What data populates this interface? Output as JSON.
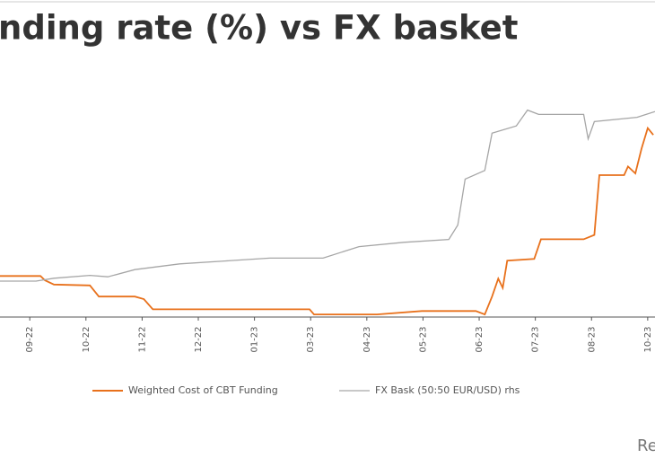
{
  "chart_data": {
    "type": "line",
    "title": "nding rate (%) vs FX basket",
    "source_note": "Re",
    "xlim": [
      -0.53,
      11.13
    ],
    "xticks": [
      {
        "value": 0,
        "label": "09-22"
      },
      {
        "value": 1,
        "label": "10-22"
      },
      {
        "value": 2,
        "label": "11-22"
      },
      {
        "value": 3,
        "label": "12-22"
      },
      {
        "value": 4,
        "label": "01-23"
      },
      {
        "value": 5,
        "label": "03-23"
      },
      {
        "value": 6,
        "label": "04-23"
      },
      {
        "value": 7,
        "label": "05-23"
      },
      {
        "value": 8,
        "label": "06-23"
      },
      {
        "value": 9,
        "label": "07-23"
      },
      {
        "value": 10,
        "label": "08-23"
      },
      {
        "value": 11,
        "label": "10-23"
      }
    ],
    "ylim": [
      8,
      33
    ],
    "y2lim": [
      16,
      30.875
    ],
    "series": [
      {
        "name": "Weighted Cost of CBT Funding",
        "color": "#e8711c",
        "x": [
          -0.53,
          0.19,
          0.27,
          0.43,
          1.07,
          1.23,
          1.87,
          2.03,
          2.19,
          4.98,
          5.06,
          6.18,
          6.98,
          7.94,
          8.1,
          8.23,
          8.34,
          8.42,
          8.5,
          8.98,
          9.1,
          9.86,
          10.05,
          10.14,
          10.58,
          10.65,
          10.78,
          10.89,
          11.0,
          11.1
        ],
        "values": [
          12.8,
          12.8,
          12.3,
          11.8,
          11.7,
          10.4,
          10.4,
          10.1,
          8.9,
          8.9,
          8.3,
          8.3,
          8.7,
          8.7,
          8.3,
          10.4,
          12.5,
          11.4,
          14.6,
          14.8,
          17.1,
          17.1,
          17.6,
          24.6,
          24.6,
          25.6,
          24.8,
          27.7,
          30.1,
          29.3
        ]
      },
      {
        "name": "FX Bask (50:50 EUR/USD) rhs",
        "color": "#a6a6a6",
        "axis": "y2",
        "x": [
          -0.53,
          0.11,
          0.43,
          1.07,
          1.39,
          1.87,
          2.67,
          3.47,
          4.27,
          5.22,
          5.86,
          6.66,
          7.46,
          7.62,
          7.75,
          8.1,
          8.23,
          8.66,
          8.86,
          9.06,
          9.86,
          9.94,
          10.05,
          10.81,
          11.13
        ],
        "values": [
          18.5,
          18.5,
          18.7,
          18.9,
          18.8,
          19.3,
          19.7,
          19.9,
          20.1,
          20.1,
          20.9,
          21.2,
          21.4,
          22.4,
          25.6,
          26.2,
          28.8,
          29.3,
          30.4,
          30.1,
          30.1,
          28.4,
          29.6,
          29.9,
          30.3
        ]
      }
    ]
  }
}
